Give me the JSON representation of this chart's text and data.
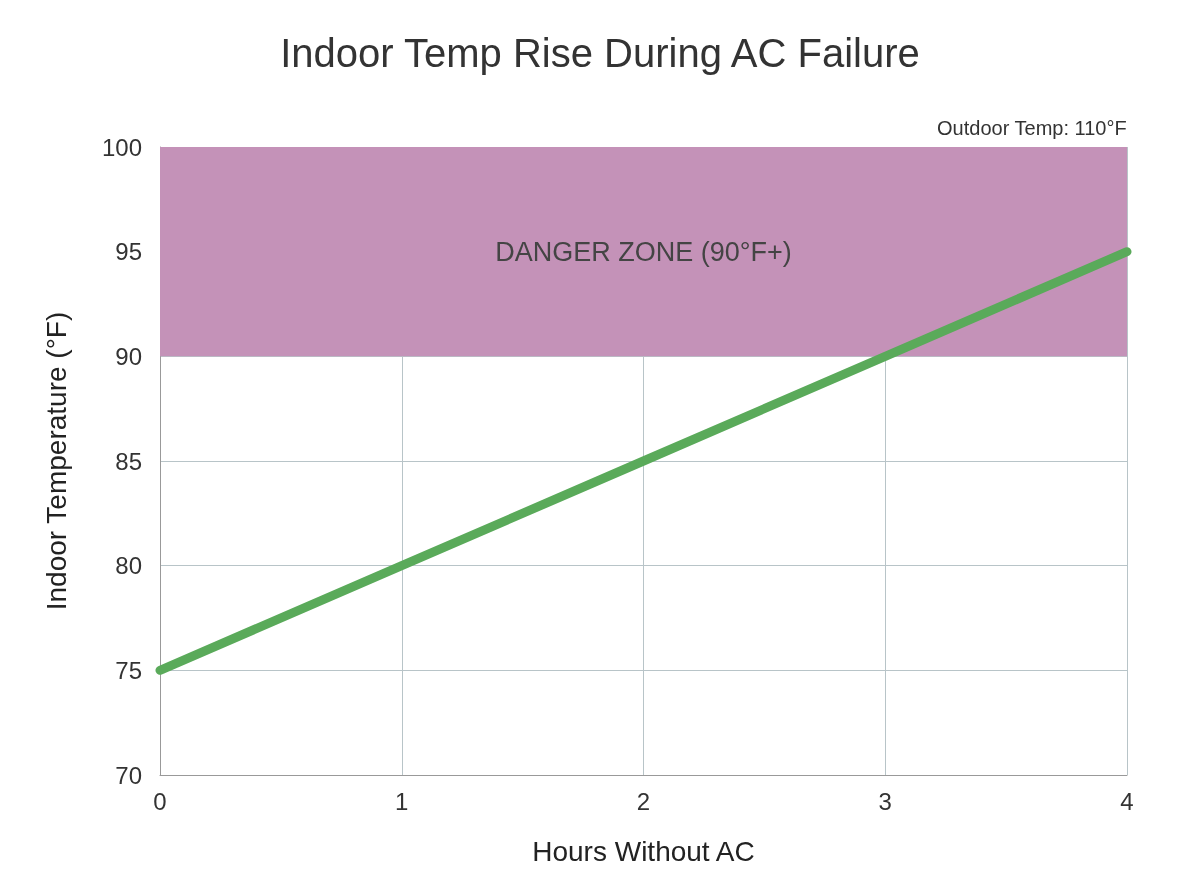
{
  "chart_data": {
    "type": "line",
    "title": "Indoor Temp Rise During AC Failure",
    "xlabel": "Hours Without AC",
    "ylabel": "Indoor Temperature (°F)",
    "x": [
      0,
      1,
      2,
      3,
      4
    ],
    "series": [
      {
        "color": "#5aaa5a",
        "values": [
          75,
          80,
          85,
          90,
          95
        ]
      }
    ],
    "xlim": [
      0,
      4
    ],
    "xticks": [
      0,
      1,
      2,
      3,
      4
    ],
    "ylim": [
      70,
      100
    ],
    "yticks": [
      70,
      75,
      80,
      85,
      90,
      95,
      100
    ],
    "bands": [
      {
        "axis": "y",
        "from": 90,
        "to": 100,
        "label": "DANGER ZONE (90°F+)",
        "color": "#c492b8"
      }
    ],
    "annotations": [
      "Outdoor Temp: 110°F"
    ],
    "grid": true,
    "line_style": "solid"
  }
}
